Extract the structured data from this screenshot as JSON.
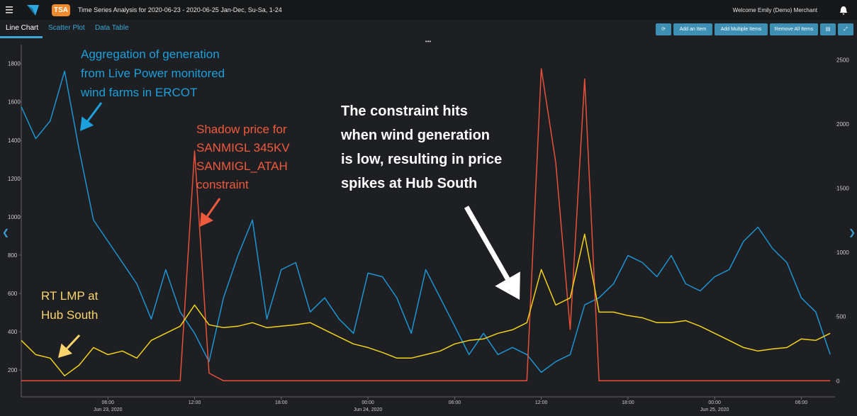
{
  "header": {
    "badge": "TSA",
    "title": "Time Series Analysis for 2020-06-23 - 2020-06-25 Jan-Dec, Su-Sa, 1-24",
    "user": "Welcome Emily (Demo) Merchant"
  },
  "tabs": [
    "Line Chart",
    "Scatter Plot",
    "Data Table"
  ],
  "buttons": [
    "Add an Item",
    "Add Multiple Items",
    "Remove All Items"
  ],
  "chart_data": {
    "type": "line",
    "x": [
      "2020-06-23 00:00",
      "2020-06-23 01:00",
      "2020-06-23 02:00",
      "2020-06-23 03:00",
      "2020-06-23 04:00",
      "2020-06-23 05:00",
      "2020-06-23 06:00",
      "2020-06-23 07:00",
      "2020-06-23 08:00",
      "2020-06-23 09:00",
      "2020-06-23 10:00",
      "2020-06-23 11:00",
      "2020-06-23 12:00",
      "2020-06-23 13:00",
      "2020-06-23 14:00",
      "2020-06-23 15:00",
      "2020-06-23 16:00",
      "2020-06-23 17:00",
      "2020-06-23 18:00",
      "2020-06-23 19:00",
      "2020-06-23 20:00",
      "2020-06-23 21:00",
      "2020-06-23 22:00",
      "2020-06-23 23:00",
      "2020-06-24 00:00",
      "2020-06-24 01:00",
      "2020-06-24 02:00",
      "2020-06-24 03:00",
      "2020-06-24 04:00",
      "2020-06-24 05:00",
      "2020-06-24 06:00",
      "2020-06-24 07:00",
      "2020-06-24 08:00",
      "2020-06-24 09:00",
      "2020-06-24 10:00",
      "2020-06-24 11:00",
      "2020-06-24 12:00",
      "2020-06-24 13:00",
      "2020-06-24 14:00",
      "2020-06-24 15:00",
      "2020-06-24 16:00",
      "2020-06-24 17:00",
      "2020-06-24 18:00",
      "2020-06-24 19:00",
      "2020-06-24 20:00",
      "2020-06-24 21:00",
      "2020-06-24 22:00",
      "2020-06-24 23:00",
      "2020-06-25 00:00",
      "2020-06-25 01:00",
      "2020-06-25 02:00",
      "2020-06-25 03:00",
      "2020-06-25 04:00",
      "2020-06-25 05:00",
      "2020-06-25 06:00",
      "2020-06-25 07:00",
      "2020-06-25 08:00"
    ],
    "xlim": [
      "2020-06-23 00:00",
      "2020-06-25 08:20"
    ],
    "xticks": [
      {
        "value": "2020-06-23 06:00",
        "label": "06:00"
      },
      {
        "value": "2020-06-23 12:00",
        "label": "12:00"
      },
      {
        "value": "2020-06-23 18:00",
        "label": "18:00"
      },
      {
        "value": "2020-06-24 00:00",
        "label": "00:00"
      },
      {
        "value": "2020-06-24 06:00",
        "label": "06:00"
      },
      {
        "value": "2020-06-24 12:00",
        "label": "12:00"
      },
      {
        "value": "2020-06-24 18:00",
        "label": "18:00"
      },
      {
        "value": "2020-06-25 00:00",
        "label": "00:00"
      },
      {
        "value": "2020-06-25 06:00",
        "label": "06:00"
      }
    ],
    "xtick_dates": [
      {
        "value": "2020-06-23 06:00",
        "label": "Jun 23, 2020"
      },
      {
        "value": "2020-06-24 00:00",
        "label": "Jun 24, 2020"
      },
      {
        "value": "2020-06-25 00:00",
        "label": "Jun 25, 2020"
      }
    ],
    "ylim": [
      60,
      1880
    ],
    "yticks": [
      200,
      400,
      600,
      800,
      1000,
      1200,
      1400,
      1600,
      1800
    ],
    "y2lim": [
      -125,
      2590
    ],
    "y2ticks": [
      0,
      500,
      1000,
      1500,
      2000,
      2500
    ],
    "grid": false,
    "series": [
      {
        "color": "#1b95d4",
        "values": [
          1575,
          1408,
          1500,
          1760,
          1353,
          983,
          872,
          761,
          650,
          466,
          724,
          503,
          392,
          244,
          577,
          798,
          983,
          466,
          724,
          761,
          503,
          577,
          466,
          392,
          706,
          687,
          577,
          392,
          724,
          577,
          429,
          281,
          392,
          281,
          318,
          281,
          188,
          244,
          281,
          540,
          577,
          650,
          798,
          761,
          687,
          798,
          650,
          613,
          687,
          724,
          872,
          946,
          835,
          761,
          577,
          503,
          281
        ]
      },
      {
        "color": "#e8503a",
        "axis": "y2",
        "values": [
          0,
          0,
          0,
          0,
          0,
          0,
          0,
          0,
          0,
          0,
          0,
          0,
          1790,
          60,
          0,
          0,
          0,
          0,
          0,
          0,
          0,
          0,
          0,
          0,
          0,
          0,
          0,
          0,
          0,
          0,
          0,
          0,
          0,
          0,
          0,
          0,
          2430,
          1700,
          400,
          2350,
          0,
          0,
          0,
          0,
          0,
          0,
          0,
          0,
          0,
          0,
          0,
          0,
          0,
          0,
          0,
          0,
          0
        ]
      },
      {
        "color": "#f2d21b",
        "axis": "y2",
        "values": [
          315,
          204,
          177,
          39,
          121,
          259,
          204,
          232,
          177,
          315,
          370,
          425,
          590,
          436,
          414,
          425,
          453,
          414,
          425,
          436,
          453,
          397,
          342,
          287,
          259,
          221,
          177,
          177,
          204,
          232,
          287,
          315,
          326,
          370,
          397,
          453,
          866,
          590,
          646,
          1142,
          535,
          535,
          508,
          491,
          453,
          453,
          469,
          425,
          370,
          315,
          259,
          232,
          248,
          259,
          326,
          315,
          370
        ]
      }
    ],
    "annotations": [
      {
        "color": "#1ca0dc",
        "lines": [
          "Aggregation of generation",
          "from Live Power monitored",
          "wind farms in ERCOT"
        ]
      },
      {
        "color": "#f05a3c",
        "lines": [
          "Shadow price for",
          "SANMIGL 345KV",
          "SANMIGL_ATAH",
          "constraint"
        ]
      },
      {
        "color": "#ffffff",
        "lines": [
          "The constraint hits",
          "when wind generation",
          "is low, resulting in price",
          "spikes at Hub South"
        ]
      },
      {
        "color": "#fbd46c",
        "lines": [
          "RT LMP at",
          "Hub South"
        ]
      }
    ]
  }
}
